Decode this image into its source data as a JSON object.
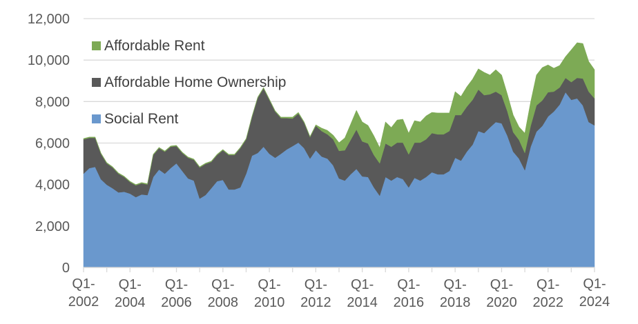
{
  "chart_data": {
    "type": "area",
    "stacked": true,
    "title": "",
    "xlabel": "",
    "ylabel": "",
    "ylim": [
      0,
      12000
    ],
    "yticks": [
      "0",
      "2,000",
      "4,000",
      "6,000",
      "8,000",
      "10,000",
      "12,000"
    ],
    "ytick_values": [
      0,
      2000,
      4000,
      6000,
      8000,
      10000,
      12000
    ],
    "grid": true,
    "legend_position": "top-left",
    "x_start": "Q1-2002",
    "x_end": "Q1-2024",
    "x_frequency": "quarterly",
    "xtick_labels": [
      [
        "Q1-",
        "2002"
      ],
      [
        "Q1-",
        "2004"
      ],
      [
        "Q1-",
        "2006"
      ],
      [
        "Q1-",
        "2008"
      ],
      [
        "Q1-",
        "2010"
      ],
      [
        "Q1-",
        "2012"
      ],
      [
        "Q1-",
        "2014"
      ],
      [
        "Q1-",
        "2016"
      ],
      [
        "Q1-",
        "2018"
      ],
      [
        "Q1-",
        "2020"
      ],
      [
        "Q1-",
        "2022"
      ],
      [
        "Q1-",
        "2024"
      ]
    ],
    "series": [
      {
        "name": "Social Rent",
        "color": "#6a98cd",
        "values": [
          4520,
          4790,
          4850,
          4250,
          3990,
          3820,
          3620,
          3650,
          3560,
          3390,
          3520,
          3490,
          4360,
          4720,
          4520,
          4790,
          5020,
          4650,
          4290,
          4190,
          3320,
          3490,
          3820,
          4160,
          4220,
          3760,
          3760,
          3860,
          4520,
          5390,
          5520,
          5820,
          5480,
          5290,
          5480,
          5690,
          5850,
          6020,
          5750,
          5250,
          5650,
          5350,
          5250,
          4920,
          4290,
          4190,
          4490,
          4750,
          4390,
          4360,
          3860,
          3460,
          4360,
          4190,
          4360,
          4260,
          3860,
          4320,
          4190,
          4360,
          4590,
          4490,
          4490,
          4650,
          5290,
          5150,
          5580,
          5920,
          6580,
          6480,
          6750,
          7010,
          6950,
          6350,
          5580,
          5250,
          4690,
          5820,
          6550,
          6820,
          7280,
          7520,
          7850,
          8450,
          8080,
          8150,
          7810,
          7010,
          6850
        ]
      },
      {
        "name": "Affordable Home Ownership",
        "color": "#595959",
        "values": [
          1660,
          1460,
          1400,
          1230,
          1030,
          1000,
          900,
          710,
          560,
          570,
          540,
          510,
          1060,
          1030,
          1060,
          1030,
          830,
          870,
          1000,
          1000,
          1500,
          1500,
          1270,
          1260,
          1430,
          1660,
          1660,
          1890,
          1660,
          1860,
          2660,
          2820,
          2600,
          2230,
          1720,
          1510,
          1330,
          1400,
          1230,
          1030,
          1180,
          1230,
          1170,
          1260,
          1330,
          1460,
          1660,
          1900,
          1690,
          1620,
          1560,
          1560,
          1620,
          1630,
          1660,
          1760,
          1590,
          1700,
          1830,
          1820,
          1890,
          1930,
          1930,
          1930,
          2060,
          2200,
          2170,
          2160,
          2000,
          1830,
          1600,
          1470,
          1360,
          1170,
          940,
          900,
          830,
          1000,
          1260,
          1230,
          1170,
          960,
          830,
          690,
          860,
          990,
          1300,
          1470,
          1300
        ]
      },
      {
        "name": "Affordable Rent",
        "color": "#7daa55",
        "values": [
          40,
          40,
          40,
          40,
          40,
          40,
          40,
          40,
          40,
          40,
          40,
          40,
          40,
          40,
          40,
          40,
          40,
          40,
          40,
          40,
          40,
          40,
          40,
          40,
          40,
          40,
          40,
          40,
          40,
          40,
          40,
          40,
          40,
          40,
          50,
          50,
          70,
          60,
          40,
          40,
          50,
          140,
          190,
          200,
          400,
          600,
          760,
          930,
          940,
          870,
          930,
          760,
          1040,
          930,
          1090,
          1130,
          1030,
          1060,
          1000,
          1130,
          1000,
          1030,
          1030,
          870,
          1130,
          900,
          960,
          1000,
          1000,
          1100,
          930,
          1060,
          970,
          830,
          830,
          630,
          960,
          1160,
          1470,
          1590,
          1320,
          1130,
          1060,
          1030,
          1560,
          1700,
          1690,
          1460,
          1390
        ]
      }
    ]
  },
  "legend": {
    "items": [
      {
        "label": "Affordable Rent",
        "color": "#7daa55"
      },
      {
        "label": "Affordable Home Ownership",
        "color": "#595959"
      },
      {
        "label": "Social Rent",
        "color": "#6a98cd"
      }
    ]
  }
}
